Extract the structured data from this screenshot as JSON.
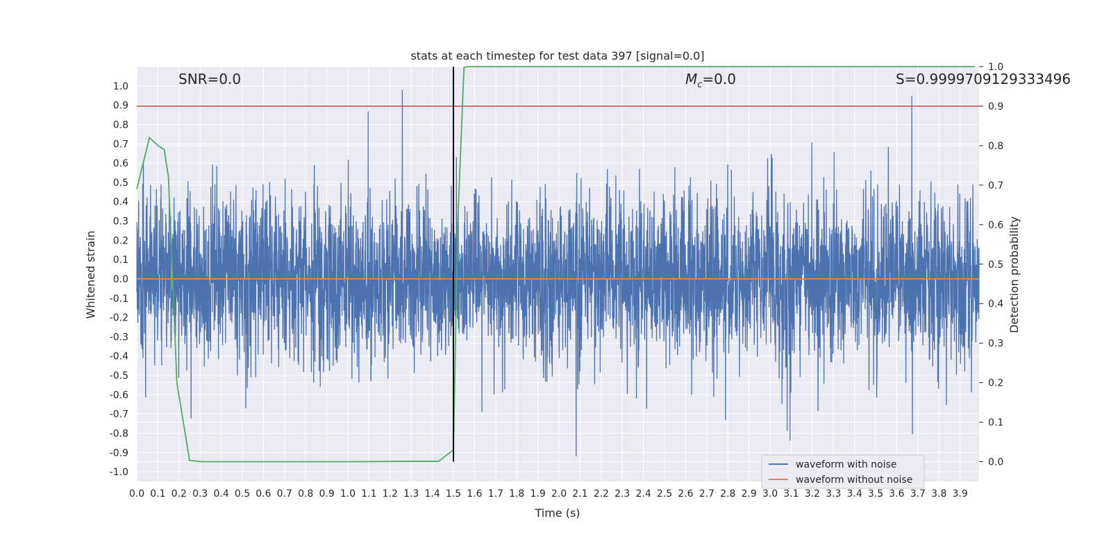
{
  "chart_data": {
    "type": "line",
    "title": "stats at each timestep for test data 397 [signal=0.0]",
    "xlabel": "Time (s)",
    "ylabel": "Whitened strain",
    "ylabel_right": "Detection probability",
    "xlim": [
      0.0,
      3.99
    ],
    "ylim": [
      -1.05,
      1.1
    ],
    "ylim_right": [
      -0.05,
      1.0
    ],
    "x_ticks": [
      "0.0",
      "0.1",
      "0.2",
      "0.3",
      "0.4",
      "0.5",
      "0.6",
      "0.7",
      "0.8",
      "0.9",
      "1.0",
      "1.1",
      "1.2",
      "1.3",
      "1.4",
      "1.5",
      "1.6",
      "1.7",
      "1.8",
      "1.9",
      "2.0",
      "2.1",
      "2.2",
      "2.3",
      "2.4",
      "2.5",
      "2.6",
      "2.7",
      "2.8",
      "2.9",
      "3.0",
      "3.1",
      "3.2",
      "3.3",
      "3.4",
      "3.5",
      "3.6",
      "3.7",
      "3.8",
      "3.9"
    ],
    "y_ticks": [
      "1.0",
      "0.9",
      "0.8",
      "0.7",
      "0.6",
      "0.5",
      "0.4",
      "0.3",
      "0.2",
      "0.1",
      "0.0",
      "-0.1",
      "-0.2",
      "-0.3",
      "-0.4",
      "-0.5",
      "-0.6",
      "-0.7",
      "-0.8",
      "-0.9",
      "-1.0"
    ],
    "y_ticks_right": [
      "1.0",
      "0.9",
      "0.8",
      "0.7",
      "0.6",
      "0.5",
      "0.4",
      "0.3",
      "0.2",
      "0.1",
      "0.0"
    ],
    "annotations": {
      "snr": "SNR=0.0",
      "mc_symbol": "M",
      "mc_sub": "c",
      "mc_value": "=0.0",
      "s": "S=0.9999709129333496"
    },
    "series": [
      {
        "name": "waveform with noise",
        "color": "#4c72b0",
        "description": "noisy whitened strain, amplitude roughly -0.9 to 1.0",
        "seed": 397,
        "n_points": 4096
      },
      {
        "name": "waveform without noise",
        "color": "#dd8452",
        "y": 0.0
      },
      {
        "name": "detection probability",
        "color": "#55a868",
        "axis": "right",
        "x": [
          0.0,
          0.06,
          0.1,
          0.13,
          0.15,
          0.19,
          0.25,
          0.31,
          0.5,
          1.0,
          1.3,
          1.43,
          1.5,
          1.52,
          1.55,
          1.57,
          2.0,
          3.0,
          3.97
        ],
        "y": [
          0.69,
          0.82,
          0.8,
          0.79,
          0.72,
          0.2,
          0.003,
          0.0,
          0.0,
          0.0,
          0.001,
          0.001,
          0.03,
          0.6,
          0.998,
          1.0,
          1.0,
          1.0,
          1.0
        ]
      },
      {
        "name": "threshold",
        "color": "#c44e52",
        "axis": "right",
        "y": 0.9
      },
      {
        "name": "trigger time",
        "color": "#000000",
        "x": 1.5
      }
    ],
    "legend": [
      "waveform with noise",
      "waveform without noise"
    ],
    "legend_position": "lower-right",
    "grid": true,
    "colors": {
      "background": "#eaeaf2",
      "grid": "#ffffff"
    }
  }
}
